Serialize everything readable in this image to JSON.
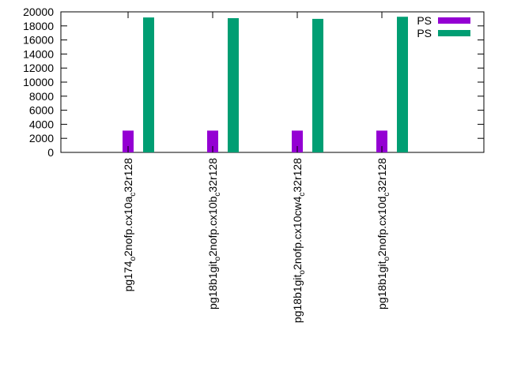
{
  "chart_data": {
    "type": "bar",
    "categories": [
      {
        "main": "pg174",
        "sub1": "o",
        "mid": "2nofp.cx10a",
        "sub2": "c",
        "tail": "32r128"
      },
      {
        "main": "pg18b1git",
        "sub1": "o",
        "mid": "2nofp.cx10b",
        "sub2": "c",
        "tail": "32r128"
      },
      {
        "main": "pg18b1git",
        "sub1": "o",
        "mid": "2nofp.cx10cw4",
        "sub2": "c",
        "tail": "32r128"
      },
      {
        "main": "pg18b1git",
        "sub1": "o",
        "mid": "2nofp.cx10d",
        "sub2": "c",
        "tail": "32r128"
      }
    ],
    "series": [
      {
        "name": "PS",
        "color": "#9400d3",
        "values": [
          3100,
          3100,
          3100,
          3100
        ]
      },
      {
        "name": "PS",
        "color": "#009e73",
        "values": [
          19200,
          19100,
          19000,
          19300
        ]
      }
    ],
    "yticks": [
      "0",
      "2000",
      "4000",
      "6000",
      "8000",
      "10000",
      "12000",
      "14000",
      "16000",
      "18000",
      "20000"
    ],
    "ylim": [
      0,
      20000
    ],
    "legend_position": "top-right",
    "grid": false
  }
}
